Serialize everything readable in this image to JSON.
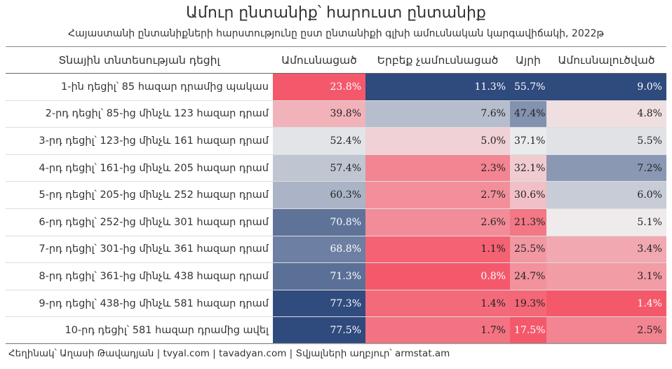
{
  "title": "Ամուր ընտանիք՝ հարուստ ընտանիք",
  "subtitle": "Հայաստանի ընտանիքների հարստությունը ըստ ընտանիքի գլխի ամուսնական կարգավիճակի, 2022թ",
  "footer": "Հեղինակ՝ Աղասի Թավադյան | tvyal.com | tavadyan.com | Տվյալների աղբյուր՝ armstat.am",
  "colors": {
    "low": "#f4596b",
    "mid": "#efefef",
    "high": "#2f4a7d"
  },
  "chart_data": {
    "type": "table",
    "columns": [
      "Տնային տնտեսության դեցիլ",
      "Ամուսնացած",
      "Երբեք չամուսնացած",
      "Այրի",
      "Ամուսնալուծված"
    ],
    "rows": [
      {
        "label": "1-ին դեցիլ՝ 85 հազար դրամից պակաս",
        "values": [
          23.8,
          11.3,
          55.7,
          9.0
        ]
      },
      {
        "label": "2-րդ դեցիլ՝ 85-ից մինչև 123 հազար դրամ",
        "values": [
          39.8,
          7.6,
          47.4,
          4.8
        ]
      },
      {
        "label": "3-րդ դեցիլ՝ 123-ից մինչև 161 հազար դրամ",
        "values": [
          52.4,
          5.0,
          37.1,
          5.5
        ]
      },
      {
        "label": "4-րդ դեցիլ՝ 161-ից մինչև 205 հազար դրամ",
        "values": [
          57.4,
          2.3,
          32.1,
          7.2
        ]
      },
      {
        "label": "5-րդ դեցիլ՝ 205-ից մինչև 252 հազար դրամ",
        "values": [
          60.3,
          2.7,
          30.6,
          6.0
        ]
      },
      {
        "label": "6-րդ դեցիլ՝ 252-ից մինչև 301 հազար դրամ",
        "values": [
          70.8,
          2.6,
          21.3,
          5.1
        ]
      },
      {
        "label": "7-րդ դեցիլ՝ 301-ից մինչև 361 հազար դրամ",
        "values": [
          68.8,
          1.1,
          25.5,
          3.4
        ]
      },
      {
        "label": "8-րդ դեցիլ՝ 361-ից մինչև 438 հազար դրամ",
        "values": [
          71.3,
          0.8,
          24.7,
          3.1
        ]
      },
      {
        "label": "9-րդ դեցիլ՝ 438-ից մինչև 581 հազար դրամ",
        "values": [
          77.3,
          1.4,
          19.3,
          1.4
        ]
      },
      {
        "label": "10-րդ դեցիլ՝ 581 հազար դրամից ավել",
        "values": [
          77.5,
          1.7,
          17.5,
          2.5
        ]
      }
    ],
    "unit": "%"
  }
}
